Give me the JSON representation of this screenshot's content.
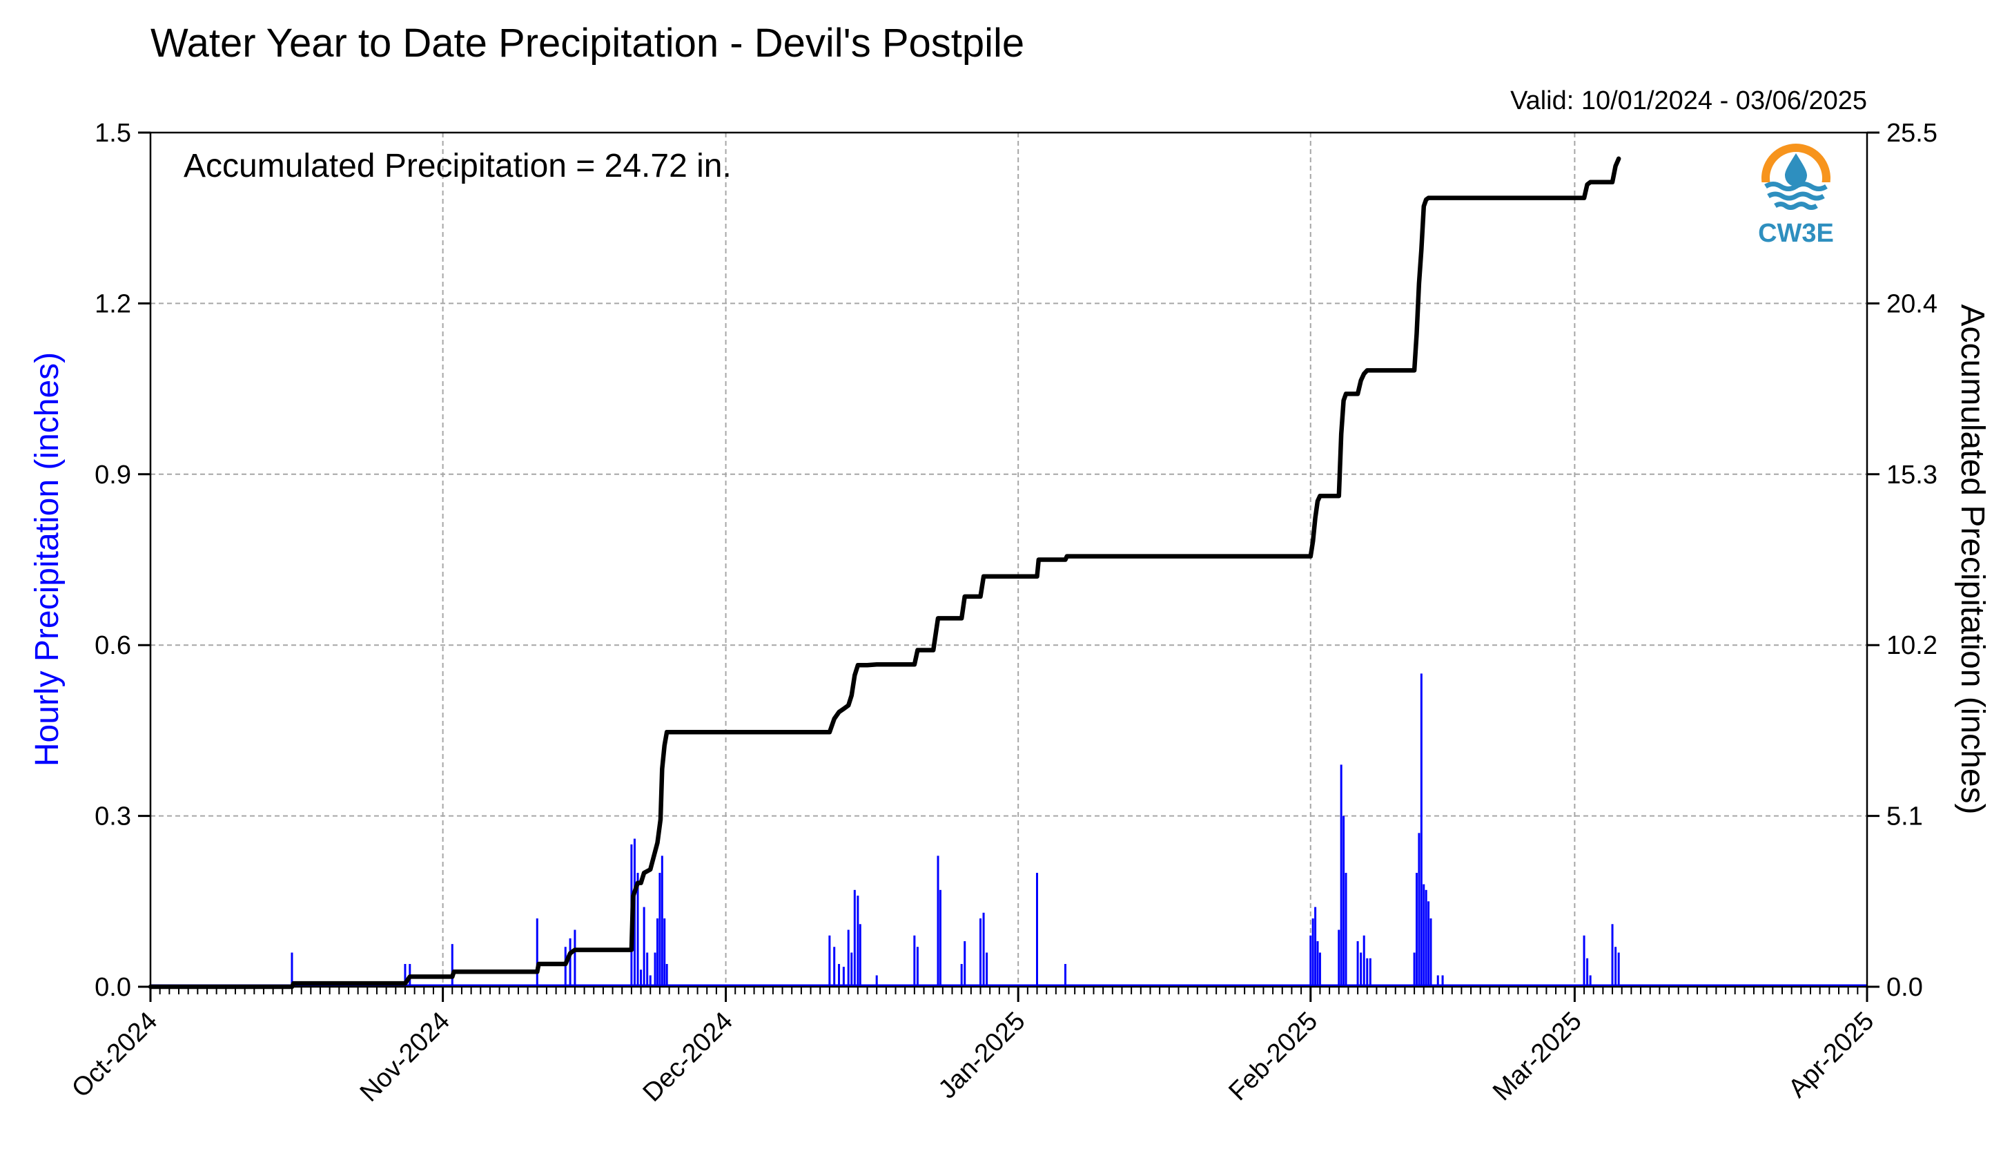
{
  "chart_data": {
    "type": "bar",
    "title": "Water Year to Date Precipitation - Devil's Postpile",
    "valid_text": "Valid: 10/01/2024 - 03/06/2025",
    "annotation": "Accumulated Precipitation = 24.72 in.",
    "logo_text": "CW3E",
    "ylabel_left": "Hourly Precipitation (inches)",
    "ylabel_right": "Accumulated Precipitation (inches)",
    "ylim_left": [
      0,
      1.5
    ],
    "ylim_right": [
      0,
      25.5
    ],
    "yticks_left": [
      "0.0",
      "0.3",
      "0.6",
      "0.9",
      "1.2",
      "1.5"
    ],
    "yticks_right": [
      "0.0",
      "5.1",
      "10.2",
      "15.3",
      "20.4",
      "25.5"
    ],
    "x_range": [
      "2024-10-01",
      "2025-04-01"
    ],
    "x_tick_dates": [
      "2024-10-01",
      "2024-11-01",
      "2024-12-01",
      "2025-01-01",
      "2025-02-01",
      "2025-03-01",
      "2025-04-01"
    ],
    "x_tick_labels": [
      "Oct-2024",
      "Nov-2024",
      "Dec-2024",
      "Jan-2025",
      "Feb-2025",
      "Mar-2025",
      "Apr-2025"
    ],
    "grid": true,
    "colors": {
      "hourly": "#0000ff",
      "accumulated": "#000000",
      "logo_orange": "#f7941d",
      "logo_blue": "#2e8fbf",
      "left_label": "#0000ff"
    },
    "series": [
      {
        "type": "bar",
        "axis": "left",
        "points": [
          [
            "2024-10-16",
            0.06
          ],
          [
            "2024-10-28",
            0.04
          ],
          [
            "2024-10-28T12",
            0.04
          ],
          [
            "2024-11-02",
            0.075
          ],
          [
            "2024-11-11",
            0.12
          ],
          [
            "2024-11-14",
            0.07
          ],
          [
            "2024-11-14T12",
            0.085
          ],
          [
            "2024-11-15",
            0.1
          ],
          [
            "2024-11-21",
            0.25
          ],
          [
            "2024-11-21T08",
            0.26
          ],
          [
            "2024-11-21T16",
            0.2
          ],
          [
            "2024-11-22",
            0.03
          ],
          [
            "2024-11-22T08",
            0.14
          ],
          [
            "2024-11-22T16",
            0.06
          ],
          [
            "2024-11-23",
            0.02
          ],
          [
            "2024-11-23T12",
            0.06
          ],
          [
            "2024-11-23T18",
            0.12
          ],
          [
            "2024-11-24",
            0.2
          ],
          [
            "2024-11-24T06",
            0.23
          ],
          [
            "2024-11-24T12",
            0.12
          ],
          [
            "2024-11-24T18",
            0.04
          ],
          [
            "2024-12-12",
            0.09
          ],
          [
            "2024-12-12T12",
            0.07
          ],
          [
            "2024-12-13",
            0.04
          ],
          [
            "2024-12-13T12",
            0.035
          ],
          [
            "2024-12-14",
            0.1
          ],
          [
            "2024-12-14T08",
            0.06
          ],
          [
            "2024-12-14T16",
            0.17
          ],
          [
            "2024-12-15",
            0.16
          ],
          [
            "2024-12-15T06",
            0.11
          ],
          [
            "2024-12-17",
            0.02
          ],
          [
            "2024-12-21",
            0.09
          ],
          [
            "2024-12-21T08",
            0.07
          ],
          [
            "2024-12-23T12",
            0.23
          ],
          [
            "2024-12-23T18",
            0.17
          ],
          [
            "2024-12-26",
            0.04
          ],
          [
            "2024-12-26T08",
            0.08
          ],
          [
            "2024-12-28",
            0.12
          ],
          [
            "2024-12-28T08",
            0.13
          ],
          [
            "2024-12-28T16",
            0.06
          ],
          [
            "2025-01-03",
            0.2
          ],
          [
            "2025-01-06",
            0.04
          ],
          [
            "2025-02-01",
            0.09
          ],
          [
            "2025-02-01T06",
            0.12
          ],
          [
            "2025-02-01T12",
            0.14
          ],
          [
            "2025-02-01T18",
            0.08
          ],
          [
            "2025-02-02",
            0.06
          ],
          [
            "2025-02-04",
            0.1
          ],
          [
            "2025-02-04T06",
            0.39
          ],
          [
            "2025-02-04T12",
            0.3
          ],
          [
            "2025-02-04T18",
            0.2
          ],
          [
            "2025-02-06",
            0.08
          ],
          [
            "2025-02-06T08",
            0.06
          ],
          [
            "2025-02-06T16",
            0.09
          ],
          [
            "2025-02-07",
            0.05
          ],
          [
            "2025-02-07T08",
            0.05
          ],
          [
            "2025-02-12",
            0.06
          ],
          [
            "2025-02-12T06",
            0.2
          ],
          [
            "2025-02-12T12",
            0.27
          ],
          [
            "2025-02-12T18",
            0.55
          ],
          [
            "2025-02-13",
            0.18
          ],
          [
            "2025-02-13T06",
            0.17
          ],
          [
            "2025-02-13T12",
            0.15
          ],
          [
            "2025-02-13T18",
            0.12
          ],
          [
            "2025-02-14T12",
            0.02
          ],
          [
            "2025-02-15",
            0.02
          ],
          [
            "2025-03-02",
            0.09
          ],
          [
            "2025-03-02T08",
            0.05
          ],
          [
            "2025-03-02T16",
            0.02
          ],
          [
            "2025-03-05",
            0.11
          ],
          [
            "2025-03-05T08",
            0.07
          ],
          [
            "2025-03-05T16",
            0.06
          ]
        ]
      },
      {
        "type": "line",
        "axis": "right",
        "points": [
          [
            "2024-10-01",
            0.0
          ],
          [
            "2024-10-16",
            0.0
          ],
          [
            "2024-10-16T04",
            0.1
          ],
          [
            "2024-10-28",
            0.1
          ],
          [
            "2024-10-28T12",
            0.3
          ],
          [
            "2024-11-02",
            0.3
          ],
          [
            "2024-11-02T04",
            0.45
          ],
          [
            "2024-11-11",
            0.45
          ],
          [
            "2024-11-11T04",
            0.68
          ],
          [
            "2024-11-14",
            0.68
          ],
          [
            "2024-11-14T12",
            1.0
          ],
          [
            "2024-11-15",
            1.1
          ],
          [
            "2024-11-21",
            1.1
          ],
          [
            "2024-11-21T04",
            2.7
          ],
          [
            "2024-11-21T16",
            3.1
          ],
          [
            "2024-11-22",
            3.1
          ],
          [
            "2024-11-22T08",
            3.4
          ],
          [
            "2024-11-23",
            3.5
          ],
          [
            "2024-11-23T18",
            4.3
          ],
          [
            "2024-11-24T02",
            5.0
          ],
          [
            "2024-11-24T06",
            6.5
          ],
          [
            "2024-11-24T12",
            7.2
          ],
          [
            "2024-11-24T18",
            7.6
          ],
          [
            "2024-12-12",
            7.6
          ],
          [
            "2024-12-12T12",
            8.0
          ],
          [
            "2024-12-13",
            8.2
          ],
          [
            "2024-12-13T12",
            8.3
          ],
          [
            "2024-12-14",
            8.4
          ],
          [
            "2024-12-14T08",
            8.7
          ],
          [
            "2024-12-14T16",
            9.3
          ],
          [
            "2024-12-15",
            9.6
          ],
          [
            "2024-12-16",
            9.6
          ],
          [
            "2024-12-17",
            9.62
          ],
          [
            "2024-12-21",
            9.62
          ],
          [
            "2024-12-21T08",
            10.05
          ],
          [
            "2024-12-23",
            10.05
          ],
          [
            "2024-12-23T12",
            11.0
          ],
          [
            "2024-12-26",
            11.0
          ],
          [
            "2024-12-26T08",
            11.65
          ],
          [
            "2024-12-28",
            11.65
          ],
          [
            "2024-12-28T08",
            12.25
          ],
          [
            "2025-01-03",
            12.25
          ],
          [
            "2025-01-03T04",
            12.75
          ],
          [
            "2025-01-06",
            12.75
          ],
          [
            "2025-01-06T04",
            12.85
          ],
          [
            "2025-02-01",
            12.85
          ],
          [
            "2025-02-01T06",
            13.3
          ],
          [
            "2025-02-01T12",
            14.0
          ],
          [
            "2025-02-01T18",
            14.5
          ],
          [
            "2025-02-02",
            14.65
          ],
          [
            "2025-02-04",
            14.65
          ],
          [
            "2025-02-04T06",
            16.5
          ],
          [
            "2025-02-04T12",
            17.5
          ],
          [
            "2025-02-04T18",
            17.7
          ],
          [
            "2025-02-06",
            17.7
          ],
          [
            "2025-02-06T08",
            18.1
          ],
          [
            "2025-02-06T16",
            18.3
          ],
          [
            "2025-02-07",
            18.4
          ],
          [
            "2025-02-12",
            18.4
          ],
          [
            "2025-02-12T06",
            19.5
          ],
          [
            "2025-02-12T12",
            21.0
          ],
          [
            "2025-02-12T18",
            22.0
          ],
          [
            "2025-02-13",
            23.3
          ],
          [
            "2025-02-13T06",
            23.5
          ],
          [
            "2025-02-13T12",
            23.55
          ],
          [
            "2025-03-02",
            23.55
          ],
          [
            "2025-03-02T08",
            23.95
          ],
          [
            "2025-03-02T16",
            24.02
          ],
          [
            "2025-03-05",
            24.02
          ],
          [
            "2025-03-05T08",
            24.5
          ],
          [
            "2025-03-05T16",
            24.72
          ]
        ]
      }
    ]
  }
}
